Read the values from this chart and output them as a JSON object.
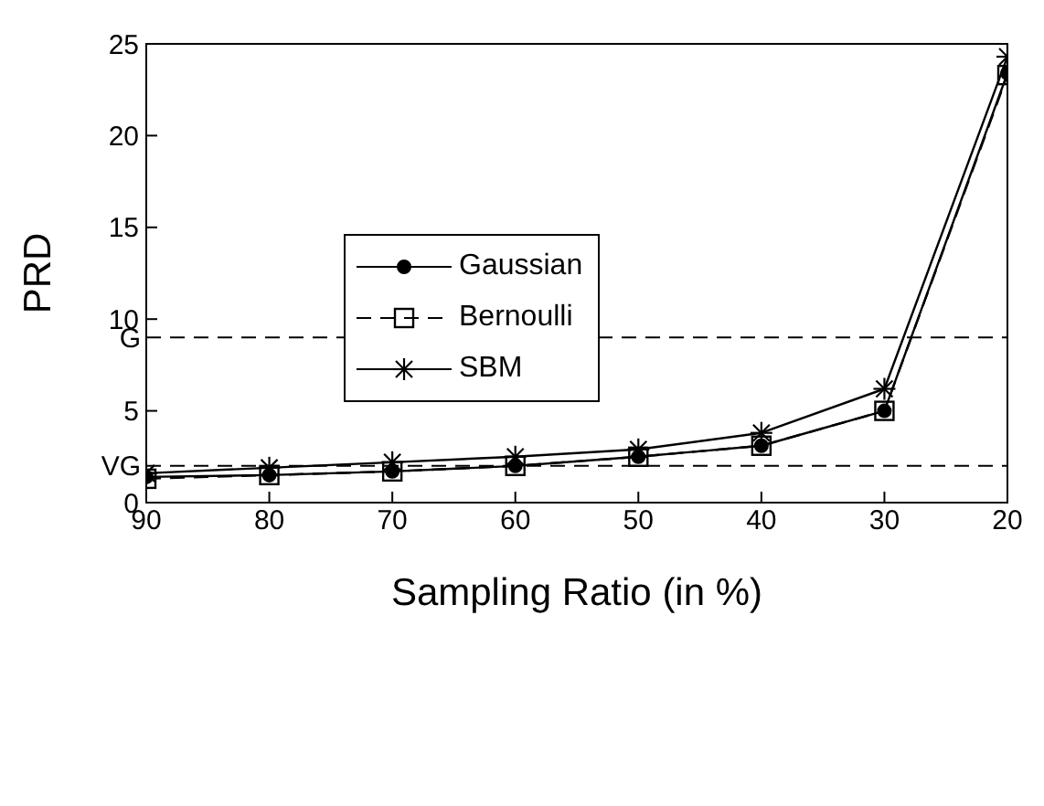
{
  "chart_data": {
    "type": "line",
    "xlabel": "Sampling Ratio (in %)",
    "ylabel": "PRD",
    "x": [
      90,
      80,
      70,
      60,
      50,
      40,
      30,
      20
    ],
    "xlim": [
      90,
      20
    ],
    "xticks": [
      90,
      80,
      70,
      60,
      50,
      40,
      30,
      20
    ],
    "ylim": [
      0,
      25
    ],
    "yticks": [
      0,
      5,
      10,
      15,
      20,
      25
    ],
    "grid": false,
    "legend": "left",
    "series": [
      {
        "name": "Bernoulli",
        "color": "#000000",
        "marker": "square",
        "line_style": "dashed",
        "values": [
          1.3,
          1.5,
          1.7,
          2.0,
          2.5,
          3.1,
          5.0,
          23.3
        ]
      },
      {
        "name": "Gaussian",
        "color": "#000000",
        "marker": "circle",
        "line_style": "solid",
        "values": [
          1.4,
          1.5,
          1.7,
          2.0,
          2.5,
          3.1,
          5.0,
          23.4
        ]
      },
      {
        "name": "SBM",
        "color": "#000000",
        "marker": "cross",
        "line_style": "solid",
        "values": [
          1.6,
          1.9,
          2.2,
          2.5,
          2.9,
          3.8,
          6.2,
          24.3
        ]
      }
    ],
    "ref_lines": [
      {
        "axis": "y",
        "value": 9,
        "label": "G",
        "line_style": "dashed",
        "color": "#000000"
      },
      {
        "axis": "y",
        "value": 2,
        "label": "VG",
        "line_style": "dashed",
        "color": "#000000"
      }
    ]
  }
}
